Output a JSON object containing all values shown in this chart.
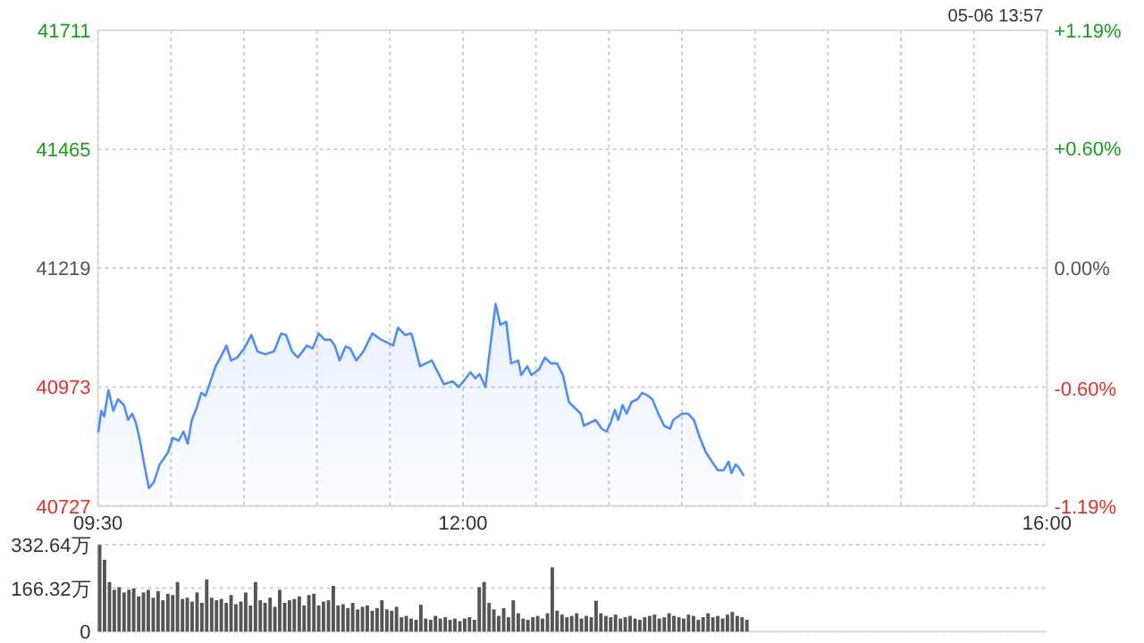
{
  "chart_data": [
    {
      "type": "area",
      "annotations": [
        "05-06 13:57"
      ],
      "x": [
        9.503,
        9.523,
        9.543,
        9.572,
        9.605,
        9.637,
        9.678,
        9.707,
        9.735,
        9.76,
        9.788,
        9.817,
        9.849,
        9.882,
        9.923,
        9.951,
        9.98,
        10.013,
        10.053,
        10.086,
        10.115,
        10.143,
        10.176,
        10.208,
        10.237,
        10.278,
        10.306,
        10.339,
        10.38,
        10.412,
        10.453,
        10.502,
        10.551,
        10.592,
        10.645,
        10.706,
        10.755,
        10.788,
        10.829,
        10.869,
        10.931,
        10.971,
        11.012,
        11.053,
        11.094,
        11.122,
        11.155,
        11.196,
        11.228,
        11.269,
        11.318,
        11.379,
        11.441,
        11.522,
        11.555,
        11.604,
        11.645,
        11.653,
        11.706,
        11.746,
        11.787,
        11.828,
        11.869,
        11.93,
        11.971,
        12.012,
        12.052,
        12.085,
        12.114,
        12.154,
        12.183,
        12.224,
        12.256,
        12.297,
        12.33,
        12.379,
        12.399,
        12.44,
        12.469,
        12.522,
        12.562,
        12.603,
        12.644,
        12.685,
        12.726,
        12.766,
        12.807,
        12.828,
        12.868,
        12.909,
        12.95,
        12.983,
        13.011,
        13.04,
        13.064,
        13.093,
        13.121,
        13.154,
        13.195,
        13.227,
        13.268,
        13.297,
        13.338,
        13.378,
        13.419,
        13.44,
        13.501,
        13.542,
        13.582,
        13.623,
        13.664,
        13.705,
        13.746,
        13.786,
        13.819,
        13.839,
        13.868,
        13.888,
        13.921
      ],
      "series": [
        {
          "color": "#4f8ef7",
          "values": [
            40881,
            40924,
            40912,
            40967,
            40924,
            40948,
            40936,
            40905,
            40918,
            40899,
            40862,
            40813,
            40764,
            40776,
            40813,
            40825,
            40838,
            40868,
            40862,
            40881,
            40856,
            40905,
            40930,
            40961,
            40955,
            40991,
            41016,
            41034,
            41059,
            41028,
            41034,
            41053,
            41081,
            41047,
            41041,
            41047,
            41084,
            41081,
            41047,
            41034,
            41059,
            41053,
            41084,
            41071,
            41071,
            41059,
            41028,
            41057,
            41053,
            41028,
            41047,
            41084,
            41071,
            41059,
            41096,
            41081,
            41084,
            41078,
            41016,
            41022,
            41028,
            41004,
            40979,
            40985,
            40973,
            40988,
            41004,
            40991,
            41000,
            40973,
            41047,
            41145,
            41102,
            41108,
            41022,
            41028,
            40998,
            41016,
            40998,
            41010,
            41034,
            41022,
            41022,
            40998,
            40942,
            40930,
            40918,
            40893,
            40899,
            40905,
            40887,
            40881,
            40899,
            40926,
            40905,
            40936,
            40918,
            40942,
            40948,
            40961,
            40955,
            40948,
            40918,
            40893,
            40887,
            40905,
            40918,
            40918,
            40905,
            40868,
            40838,
            40819,
            40801,
            40801,
            40819,
            40795,
            40813,
            40807,
            40791
          ]
        }
      ],
      "xlim": [
        9.5,
        16
      ],
      "xticks": [
        {
          "value": 9.5,
          "label": "09:30"
        },
        {
          "value": 10,
          "label": null
        },
        {
          "value": 10.5,
          "label": null
        },
        {
          "value": 11,
          "label": null
        },
        {
          "value": 11.5,
          "label": null
        },
        {
          "value": 12,
          "label": "12:00"
        },
        {
          "value": 12.5,
          "label": null
        },
        {
          "value": 13,
          "label": null
        },
        {
          "value": 13.5,
          "label": null
        },
        {
          "value": 14,
          "label": null
        },
        {
          "value": 14.5,
          "label": null
        },
        {
          "value": 15,
          "label": null
        },
        {
          "value": 15.5,
          "label": null
        },
        {
          "value": 16,
          "label": "16:00"
        }
      ],
      "ylim": [
        40727,
        41711
      ],
      "yticks": [
        40727,
        40973,
        41219,
        41465,
        41711
      ],
      "y2lim": [
        -1.19,
        1.19
      ],
      "y2ticks": [
        {
          "value": -1.19,
          "label": "-1.19%"
        },
        {
          "value": -0.6,
          "label": "-0.60%"
        },
        {
          "value": 0,
          "label": "0.00%"
        },
        {
          "value": 0.6,
          "label": "+0.60%"
        },
        {
          "value": 1.19,
          "label": "+1.19%"
        }
      ],
      "grid": true
    },
    {
      "type": "bar",
      "color": "#555555",
      "x": [
        9.5,
        9.533,
        9.567,
        9.6,
        9.633,
        9.667,
        9.7,
        9.733,
        9.767,
        9.8,
        9.833,
        9.867,
        9.9,
        9.933,
        9.967,
        10,
        10.033,
        10.067,
        10.1,
        10.133,
        10.167,
        10.2,
        10.233,
        10.267,
        10.3,
        10.333,
        10.367,
        10.4,
        10.433,
        10.467,
        10.5,
        10.533,
        10.567,
        10.6,
        10.633,
        10.667,
        10.7,
        10.733,
        10.767,
        10.8,
        10.833,
        10.867,
        10.9,
        10.933,
        10.967,
        11,
        11.033,
        11.067,
        11.1,
        11.133,
        11.167,
        11.2,
        11.233,
        11.267,
        11.3,
        11.333,
        11.367,
        11.4,
        11.433,
        11.467,
        11.5,
        11.533,
        11.567,
        11.6,
        11.633,
        11.667,
        11.7,
        11.733,
        11.767,
        11.8,
        11.833,
        11.867,
        11.9,
        11.933,
        11.967,
        12,
        12.033,
        12.067,
        12.1,
        12.133,
        12.167,
        12.2,
        12.233,
        12.267,
        12.3,
        12.333,
        12.367,
        12.4,
        12.433,
        12.467,
        12.5,
        12.533,
        12.567,
        12.6,
        12.633,
        12.667,
        12.7,
        12.733,
        12.767,
        12.8,
        12.833,
        12.867,
        12.9,
        12.933,
        12.967,
        13,
        13.033,
        13.067,
        13.1,
        13.133,
        13.167,
        13.2,
        13.233,
        13.267,
        13.3,
        13.333,
        13.367,
        13.4,
        13.433,
        13.467,
        13.5,
        13.533,
        13.567,
        13.6,
        13.633,
        13.667,
        13.7,
        13.733,
        13.767,
        13.8,
        13.833,
        13.867,
        13.9,
        13.933
      ],
      "values": [
        332,
        275,
        190,
        160,
        170,
        150,
        160,
        165,
        135,
        150,
        160,
        130,
        155,
        120,
        145,
        140,
        190,
        125,
        130,
        115,
        150,
        110,
        200,
        130,
        120,
        125,
        110,
        140,
        105,
        115,
        150,
        100,
        190,
        120,
        110,
        130,
        95,
        160,
        110,
        120,
        125,
        135,
        100,
        140,
        145,
        100,
        115,
        120,
        175,
        100,
        105,
        90,
        110,
        85,
        95,
        100,
        80,
        90,
        120,
        85,
        80,
        95,
        55,
        60,
        50,
        45,
        103,
        50,
        45,
        60,
        50,
        55,
        45,
        50,
        40,
        50,
        55,
        45,
        170,
        190,
        110,
        85,
        60,
        90,
        55,
        120,
        70,
        50,
        45,
        55,
        60,
        50,
        70,
        246,
        80,
        65,
        55,
        60,
        70,
        50,
        60,
        55,
        118,
        70,
        60,
        55,
        65,
        50,
        55,
        60,
        50,
        45,
        55,
        60,
        65,
        50,
        55,
        70,
        60,
        55,
        50,
        65,
        60,
        45,
        55,
        70,
        55,
        60,
        50,
        65,
        75,
        60,
        55,
        45
      ],
      "xlim": [
        9.5,
        16
      ],
      "ylim": [
        0,
        332.64
      ],
      "yticks": [
        0,
        {
          "value": 166.32,
          "label": "166.32万"
        },
        {
          "value": 332.64,
          "label": "332.64万"
        }
      ],
      "grid": "y",
      "tick_labels": "y"
    }
  ]
}
